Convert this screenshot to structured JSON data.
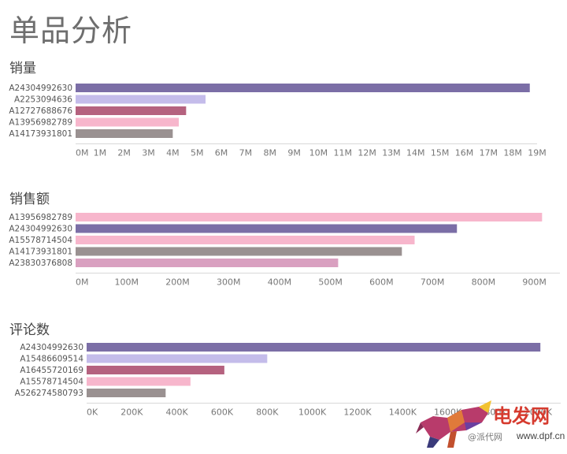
{
  "page": {
    "title": "单品分析"
  },
  "chart_data": [
    {
      "type": "bar",
      "orientation": "horizontal",
      "title": "销量",
      "categories": [
        "A24304992630",
        "A2253094636",
        "A12727688676",
        "A13956982789",
        "A14173931801"
      ],
      "values": [
        18700000,
        5350000,
        4550000,
        4250000,
        4000000
      ],
      "colors": [
        "#7b6ea6",
        "#c4bcea",
        "#b5627f",
        "#f7b6cc",
        "#9a9191"
      ],
      "xlim": [
        0,
        19000000
      ],
      "ticks": [
        0,
        1000000,
        2000000,
        3000000,
        4000000,
        5000000,
        6000000,
        7000000,
        8000000,
        9000000,
        10000000,
        11000000,
        12000000,
        13000000,
        14000000,
        15000000,
        16000000,
        17000000,
        18000000,
        19000000
      ],
      "tick_labels": [
        "0M",
        "1M",
        "2M",
        "3M",
        "4M",
        "5M",
        "6M",
        "7M",
        "8M",
        "9M",
        "10M",
        "11M",
        "12M",
        "13M",
        "14M",
        "15M",
        "16M",
        "17M",
        "18M",
        "19M"
      ],
      "grid": false
    },
    {
      "type": "bar",
      "orientation": "horizontal",
      "title": "销售额",
      "categories": [
        "A13956982789",
        "A24304992630",
        "A15578714504",
        "A14173931801",
        "A23830376808"
      ],
      "values": [
        915000000,
        748000000,
        665000000,
        640000000,
        515000000
      ],
      "colors": [
        "#f7b6cc",
        "#7b6ea6",
        "#f7b6cc",
        "#9a9191",
        "#d9a0c0"
      ],
      "xlim": [
        0,
        950000000
      ],
      "ticks": [
        0,
        100000000,
        200000000,
        300000000,
        400000000,
        500000000,
        600000000,
        700000000,
        800000000,
        900000000
      ],
      "tick_labels": [
        "0M",
        "100M",
        "200M",
        "300M",
        "400M",
        "500M",
        "600M",
        "700M",
        "800M",
        "900M"
      ],
      "grid": false
    },
    {
      "type": "bar",
      "orientation": "horizontal",
      "title": "评论数",
      "categories": [
        "A24304992630",
        "A15486609514",
        "A16455720169",
        "A15578714504",
        "A526274580793"
      ],
      "values": [
        2010000,
        800000,
        610000,
        460000,
        350000
      ],
      "colors": [
        "#7b6ea6",
        "#c4bcea",
        "#b5627f",
        "#f7b6cc",
        "#9a9191"
      ],
      "xlim": [
        0,
        2100000
      ],
      "ticks": [
        0,
        200000,
        400000,
        600000,
        800000,
        1000000,
        1200000,
        1400000,
        1600000,
        1800000,
        2000000
      ],
      "tick_labels": [
        "0K",
        "200K",
        "400K",
        "600K",
        "800K",
        "1000K",
        "1200K",
        "1400K",
        "1600K",
        "1800K",
        "2000K"
      ],
      "grid": false
    }
  ],
  "watermark": {
    "brand": "电发网",
    "sub": "@派代网",
    "url": "www.dpf.cn"
  }
}
